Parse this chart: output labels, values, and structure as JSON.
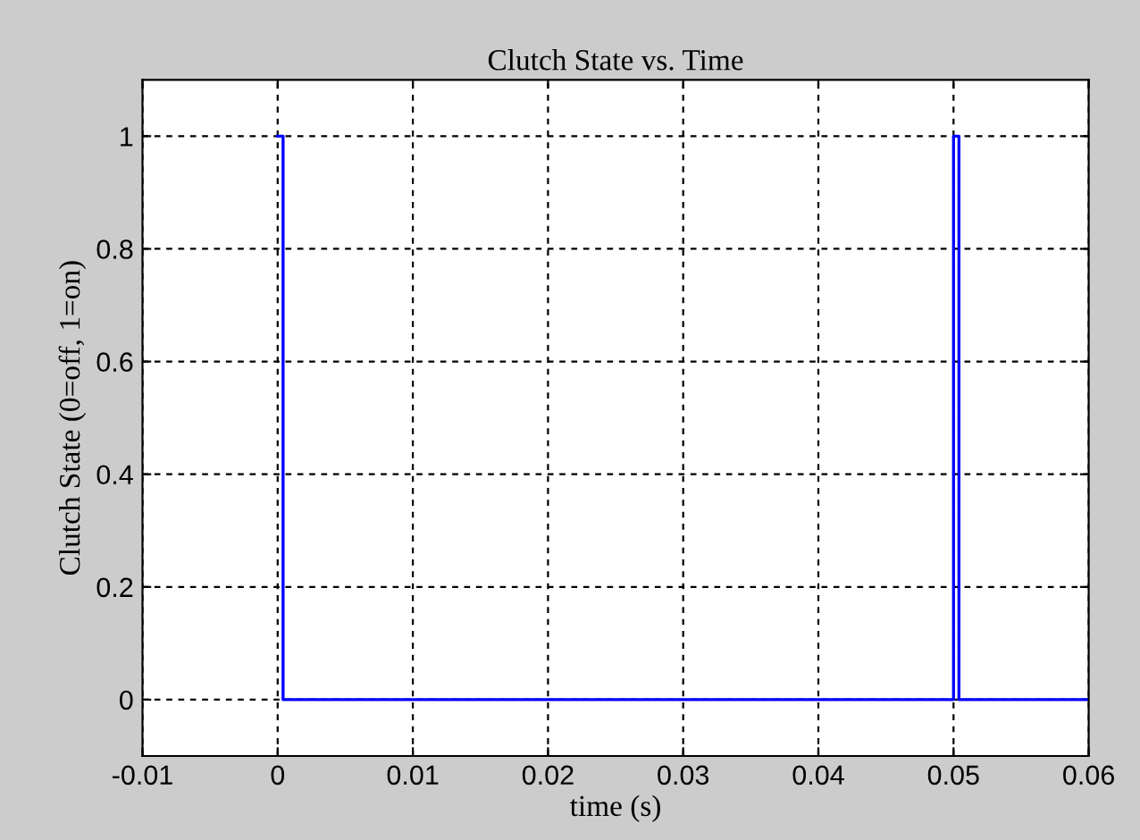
{
  "chart_data": {
    "type": "step",
    "title": "Clutch State vs. Time",
    "xlabel": "time (s)",
    "ylabel": "Clutch State (0=off, 1=on)",
    "series": [
      {
        "color": "#0000ff",
        "x": [
          0,
          0.0004,
          0.05,
          0.0504,
          0.06
        ],
        "values": [
          1,
          0,
          1,
          0,
          0
        ]
      }
    ],
    "xlim": [
      -0.01,
      0.06
    ],
    "ylim": [
      -0.1,
      1.1
    ],
    "xticks": [
      -0.01,
      0,
      0.01,
      0.02,
      0.03,
      0.04,
      0.05,
      0.06
    ],
    "yticks": [
      0,
      0.2,
      0.4,
      0.6,
      0.8,
      1
    ],
    "grid": true,
    "line_style": "solid"
  }
}
